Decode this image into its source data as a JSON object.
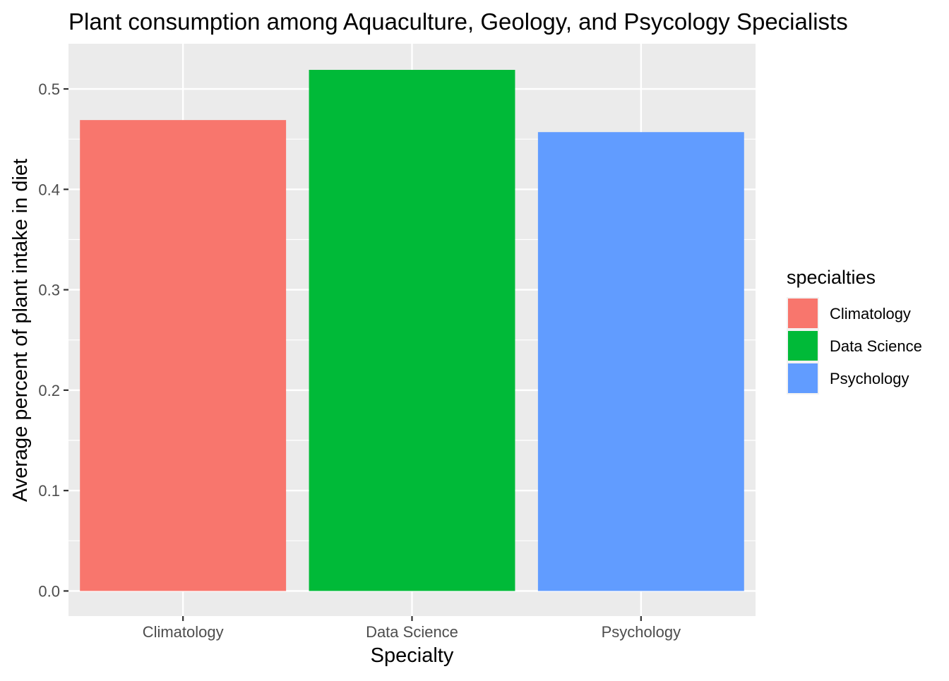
{
  "chart_data": {
    "type": "bar",
    "title": "Plant consumption among Aquaculture, Geology, and Psycology Specialists",
    "xlabel": "Specialty",
    "ylabel": "Average percent of plant intake in diet",
    "categories": [
      "Climatology",
      "Data Science",
      "Psychology"
    ],
    "values": [
      0.469,
      0.519,
      0.457
    ],
    "colors": [
      "#F8766D",
      "#00BA38",
      "#619CFF"
    ],
    "ylim": [
      -0.025,
      0.545
    ],
    "yticks": [
      0.0,
      0.1,
      0.2,
      0.3,
      0.4,
      0.5
    ],
    "ytick_labels": [
      "0.0",
      "0.1",
      "0.2",
      "0.3",
      "0.4",
      "0.5"
    ],
    "grid": true,
    "legend": {
      "title": "specialties",
      "placement": "right",
      "entries": [
        "Climatology",
        "Data Science",
        "Psychology"
      ]
    }
  }
}
